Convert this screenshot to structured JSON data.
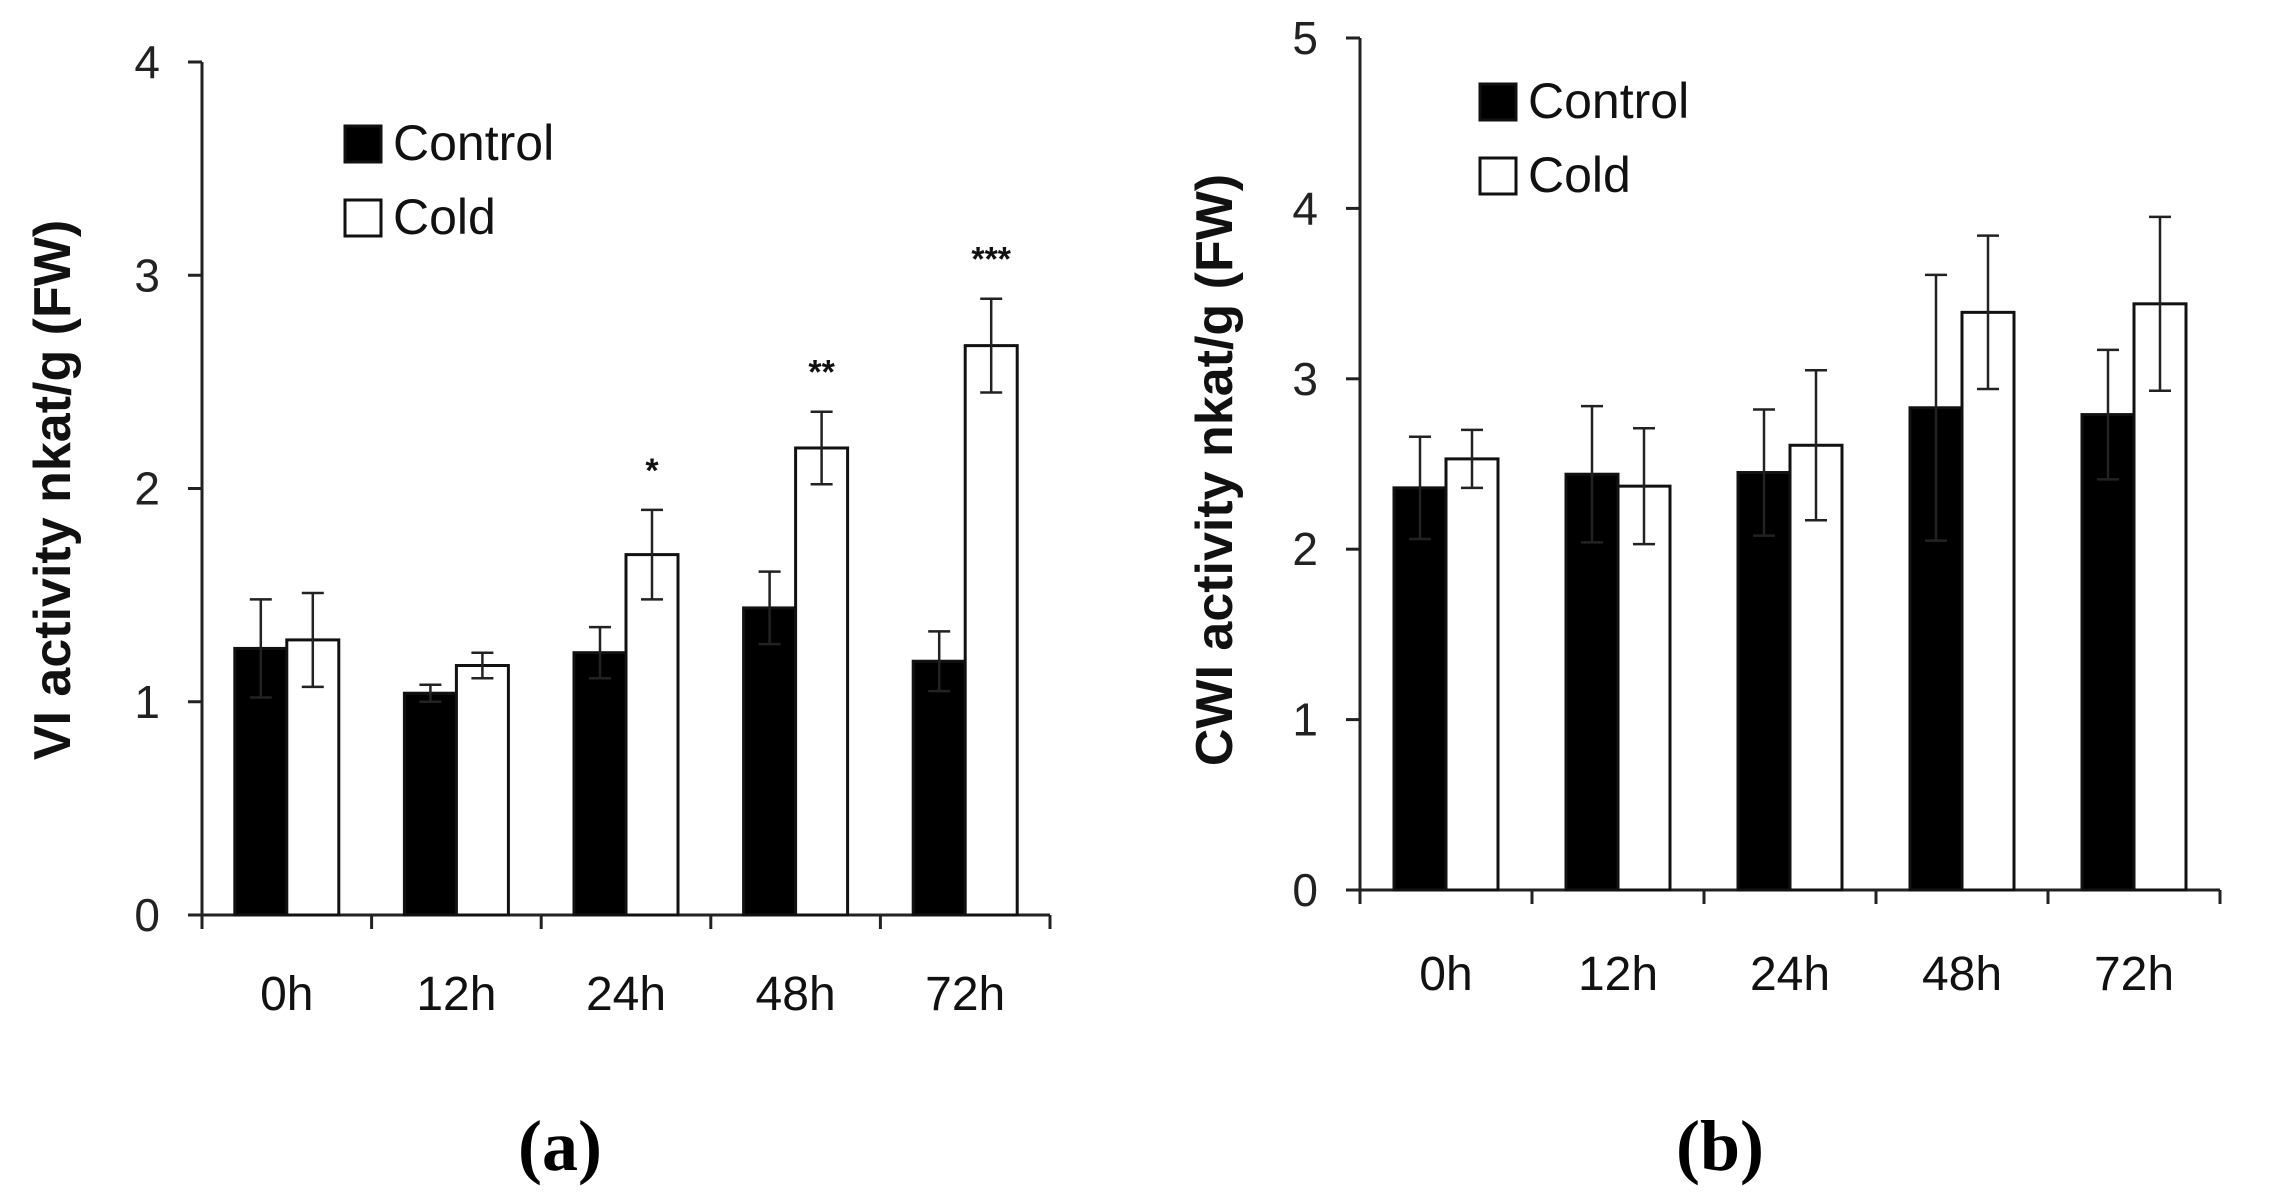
{
  "chart_data": [
    {
      "type": "bar",
      "panel": "(a)",
      "ylabel": "VI activity  nkat/g (FW)",
      "categories": [
        "0h",
        "12h",
        "24h",
        "48h",
        "72h"
      ],
      "ylim": [
        0,
        4
      ],
      "yticks": [
        "0",
        "1",
        "2",
        "3",
        "4"
      ],
      "series": [
        {
          "name": "Control",
          "fill": "#000000",
          "values": [
            1.25,
            1.04,
            1.23,
            1.44,
            1.19
          ],
          "errors": [
            0.23,
            0.04,
            0.12,
            0.17,
            0.14
          ]
        },
        {
          "name": "Cold",
          "fill": "#ffffff",
          "values": [
            1.29,
            1.17,
            1.69,
            2.19,
            2.67
          ],
          "errors": [
            0.22,
            0.06,
            0.21,
            0.17,
            0.22
          ]
        }
      ],
      "annotations": [
        "",
        "",
        "*",
        "**",
        "***"
      ],
      "legend": "top-left"
    },
    {
      "type": "bar",
      "panel": "(b)",
      "ylabel": "CWI activity  nkat/g (FW)",
      "categories": [
        "0h",
        "12h",
        "24h",
        "48h",
        "72h"
      ],
      "ylim": [
        0,
        5
      ],
      "yticks": [
        "0",
        "1",
        "2",
        "3",
        "4",
        "5"
      ],
      "series": [
        {
          "name": "Control",
          "fill": "#000000",
          "values": [
            2.36,
            2.44,
            2.45,
            2.83,
            2.79
          ],
          "errors": [
            0.3,
            0.4,
            0.37,
            0.78,
            0.38
          ]
        },
        {
          "name": "Cold",
          "fill": "#ffffff",
          "values": [
            2.53,
            2.37,
            2.61,
            3.39,
            3.44
          ],
          "errors": [
            0.17,
            0.34,
            0.44,
            0.45,
            0.51
          ]
        }
      ],
      "annotations": [
        "",
        "",
        "",
        "",
        ""
      ],
      "legend": "top-left"
    }
  ]
}
